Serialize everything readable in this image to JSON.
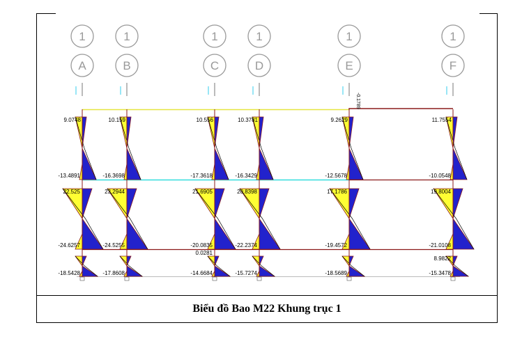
{
  "caption": "Biểu đồ Bao M22 Khung trục 1",
  "colors": {
    "positive": "#ffff33",
    "negative": "#2222cc",
    "frame": "#8b1a1a",
    "outline": "#000000",
    "cyan_beam": "#33dddd",
    "yellow_beam": "#ffff66",
    "bubble": "#999999"
  },
  "axes": {
    "row_labels": [
      "1",
      "1",
      "1",
      "1",
      "1",
      "1"
    ],
    "col_labels": [
      "A",
      "B",
      "C",
      "D",
      "E",
      "F"
    ]
  },
  "top_note": "-0.1789",
  "columns": [
    {
      "axis": "A",
      "top": [
        "9.0748",
        "-13.4891"
      ],
      "mid": [
        "22.525",
        "-24.6257"
      ],
      "bot": [
        "-18.5428"
      ],
      "side": []
    },
    {
      "axis": "B",
      "top": [
        "10.159",
        "-16.3698"
      ],
      "mid": [
        "23.2944",
        "-24.5255"
      ],
      "bot": [
        "-17.8608"
      ],
      "side": []
    },
    {
      "axis": "C",
      "top": [
        "10.556",
        "-17.3618"
      ],
      "mid": [
        "21.6905",
        "-20.0835",
        "0.0281"
      ],
      "bot": [
        "-14.6684"
      ],
      "side": []
    },
    {
      "axis": "D",
      "top": [
        "10.3781",
        "-16.3429"
      ],
      "mid": [
        "20.8398",
        "-22.2374"
      ],
      "bot": [
        "-15.7274"
      ],
      "side": []
    },
    {
      "axis": "E",
      "top": [
        "9.2629",
        "-12.5678"
      ],
      "mid": [
        "17.1786",
        "-19.4572"
      ],
      "bot": [
        "-18.5689"
      ],
      "side": []
    },
    {
      "axis": "F",
      "top": [
        "11.7554",
        "-10.0548"
      ],
      "mid": [
        "19.8004",
        "-21.0108"
      ],
      "bot": [
        "8.9822",
        "-15.3478"
      ],
      "side": []
    }
  ]
}
